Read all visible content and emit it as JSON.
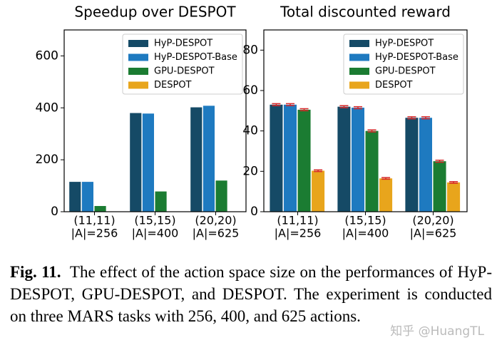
{
  "chart_data": [
    {
      "type": "bar",
      "title": "Speedup over DESPOT",
      "categories": [
        "(11,11)",
        "(15,15)",
        "(20,20)"
      ],
      "category_sublabels": [
        "|A|=256",
        "|A|=400",
        "|A|=625"
      ],
      "series": [
        {
          "name": "HyP-DESPOT",
          "color": "#154a66",
          "values": [
            115,
            380,
            402
          ]
        },
        {
          "name": "HyP-DESPOT-Base",
          "color": "#1e7ac0",
          "values": [
            115,
            378,
            408
          ]
        },
        {
          "name": "GPU-DESPOT",
          "color": "#1b7c32",
          "values": [
            22,
            78,
            120
          ]
        },
        {
          "name": "DESPOT",
          "color": "#e8a51c",
          "values": [
            1,
            1,
            1
          ]
        }
      ],
      "ylim": [
        0,
        700
      ],
      "yticks": [
        0,
        200,
        400,
        600
      ],
      "legend": "upper right"
    },
    {
      "type": "bar",
      "title": "Total discounted reward",
      "categories": [
        "(11,11)",
        "(15,15)",
        "(20,20)"
      ],
      "category_sublabels": [
        "|A|=256",
        "|A|=400",
        "|A|=625"
      ],
      "series": [
        {
          "name": "HyP-DESPOT",
          "color": "#154a66",
          "values": [
            53,
            52,
            46.5
          ],
          "errors": [
            0.5,
            0.5,
            0.5
          ]
        },
        {
          "name": "HyP-DESPOT-Base",
          "color": "#1e7ac0",
          "values": [
            53,
            51.5,
            46.5
          ],
          "errors": [
            0.5,
            0.5,
            0.5
          ]
        },
        {
          "name": "GPU-DESPOT",
          "color": "#1b7c32",
          "values": [
            50.5,
            40,
            25
          ],
          "errors": [
            0.5,
            0.5,
            0.5
          ]
        },
        {
          "name": "DESPOT",
          "color": "#e8a51c",
          "values": [
            20.3,
            16.5,
            14.5
          ],
          "errors": [
            0.4,
            0.4,
            0.4
          ]
        }
      ],
      "error_color": "#d62728",
      "ylim": [
        0,
        90
      ],
      "yticks": [
        0,
        20,
        40,
        60,
        80
      ],
      "legend": "upper right"
    }
  ],
  "caption": {
    "label": "Fig. 11.",
    "text": "The effect of the action space size on the performances of HyP-DESPOT, GPU-DESPOT, and DESPOT. The experiment is conducted on three MARS tasks with 256, 400, and 625 actions."
  },
  "watermark": "知乎 @HuangTL"
}
